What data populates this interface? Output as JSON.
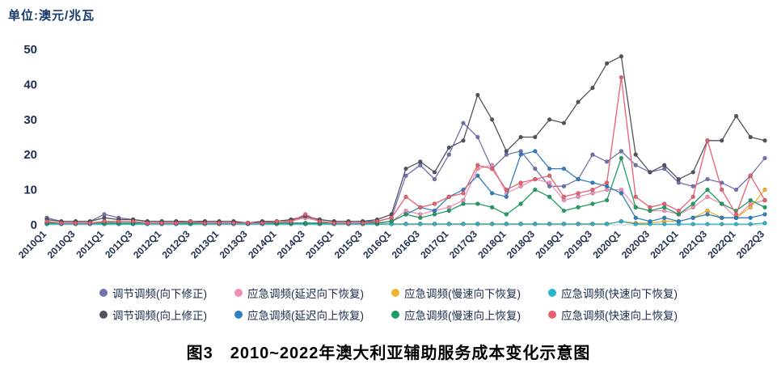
{
  "unit_label": "单位:澳元/兆瓦",
  "caption": "图3　2010~2022年澳大利亚辅助服务成本变化示意图",
  "chart_data": {
    "type": "line",
    "title": "2010~2022年澳大利亚辅助服务成本变化示意图",
    "ylabel": "澳元/兆瓦",
    "ylim": [
      0,
      50
    ],
    "yticks": [
      0,
      10,
      20,
      30,
      40,
      50
    ],
    "x_tick_step": 2,
    "grid": false,
    "legend_position": "bottom",
    "x": [
      "2010Q1",
      "2010Q2",
      "2010Q3",
      "2010Q4",
      "2011Q1",
      "2011Q2",
      "2011Q3",
      "2011Q4",
      "2012Q1",
      "2012Q2",
      "2012Q3",
      "2012Q4",
      "2013Q1",
      "2013Q2",
      "2013Q3",
      "2013Q4",
      "2014Q1",
      "2014Q2",
      "2014Q3",
      "2014Q4",
      "2015Q1",
      "2015Q2",
      "2015Q3",
      "2015Q4",
      "2016Q1",
      "2016Q2",
      "2016Q3",
      "2016Q4",
      "2017Q1",
      "2017Q2",
      "2017Q3",
      "2017Q4",
      "2018Q1",
      "2018Q2",
      "2018Q3",
      "2018Q4",
      "2019Q1",
      "2019Q2",
      "2019Q3",
      "2019Q4",
      "2020Q1",
      "2020Q2",
      "2020Q3",
      "2020Q4",
      "2021Q1",
      "2021Q2",
      "2021Q3",
      "2021Q4",
      "2022Q1",
      "2022Q2",
      "2022Q3"
    ],
    "series": [
      {
        "name": "调节调频(向下修正)",
        "color": "#6f72b0",
        "values": [
          2,
          1,
          1,
          1,
          3,
          2,
          1.5,
          1,
          1,
          1,
          1,
          1,
          1,
          1,
          0.5,
          1,
          1,
          1.5,
          2,
          1.5,
          1,
          1,
          1,
          1,
          2,
          14,
          17,
          13,
          20,
          29,
          25,
          16,
          20,
          21,
          16,
          11,
          11,
          13,
          20,
          18,
          21,
          17,
          15,
          16,
          12,
          11,
          13,
          12,
          10,
          14,
          19
        ]
      },
      {
        "name": "应急调频(延迟向下恢复)",
        "color": "#ef8fb5",
        "values": [
          0.5,
          0.5,
          0.5,
          0.5,
          1,
          0.5,
          0.5,
          0.5,
          0.5,
          0.5,
          0.5,
          0.5,
          0.5,
          0.5,
          0.5,
          0.5,
          0.5,
          1,
          2,
          1,
          0.5,
          0.5,
          0.5,
          0.5,
          1,
          4,
          3,
          4,
          5,
          7,
          16,
          17,
          9,
          11,
          13,
          12,
          7,
          8,
          9,
          10,
          10,
          5,
          4,
          4,
          3,
          5,
          8,
          6,
          2,
          6,
          7
        ]
      },
      {
        "name": "应急调频(慢速向下恢复)",
        "color": "#edb52e",
        "values": [
          0.3,
          0.3,
          0.3,
          0.3,
          0.3,
          0.3,
          0.3,
          0.3,
          0.3,
          0.3,
          0.3,
          0.3,
          0.3,
          0.3,
          0.3,
          0.3,
          0.3,
          0.3,
          0.3,
          0.3,
          0.3,
          0.3,
          0.3,
          0.3,
          0.3,
          0.3,
          0.3,
          0.3,
          0.3,
          0.3,
          0.3,
          0.3,
          0.3,
          0.3,
          0.3,
          0.3,
          0.3,
          0.3,
          0.3,
          0.3,
          1,
          0.5,
          0.5,
          1,
          1,
          2,
          4,
          2,
          2,
          5,
          10
        ]
      },
      {
        "name": "应急调频(快速向下恢复)",
        "color": "#2ab5cf",
        "values": [
          0.2,
          0.2,
          0.2,
          0.2,
          0.2,
          0.2,
          0.2,
          0.2,
          0.2,
          0.2,
          0.2,
          0.2,
          0.2,
          0.2,
          0.2,
          0.2,
          0.2,
          0.2,
          0.2,
          0.2,
          0.2,
          0.2,
          0.2,
          0.2,
          0.2,
          0.2,
          0.2,
          0.2,
          0.2,
          0.2,
          0.2,
          0.2,
          0.2,
          0.2,
          0.2,
          0.2,
          0.2,
          0.2,
          0.2,
          0.2,
          1,
          0.2,
          0.2,
          0.2,
          0.2,
          0.2,
          0.2,
          0.2,
          0.2,
          0.2,
          0.5
        ]
      },
      {
        "name": "调节调频(向上修正)",
        "color": "#52525e",
        "values": [
          1.5,
          1,
          1,
          1,
          2,
          1.5,
          1.5,
          1,
          1,
          1,
          1,
          1,
          1,
          1,
          0.5,
          1,
          1,
          1.5,
          2.5,
          1.5,
          1,
          1,
          1,
          1.5,
          3,
          16,
          18,
          15,
          22,
          24,
          37,
          30,
          21,
          25,
          25,
          30,
          29,
          35,
          39,
          46,
          48,
          20,
          15,
          17,
          13,
          15,
          24,
          24,
          31,
          25,
          24
        ]
      },
      {
        "name": "应急调频(延迟向上恢复)",
        "color": "#2d7fc1",
        "values": [
          0.5,
          0.5,
          0.5,
          0.5,
          0.5,
          0.5,
          0.5,
          0.5,
          0.5,
          0.5,
          0.5,
          0.5,
          0.5,
          0.5,
          0.5,
          0.5,
          0.5,
          0.5,
          0.5,
          0.5,
          0.5,
          0.5,
          0.5,
          0.5,
          1,
          3,
          5,
          4,
          8,
          10,
          14,
          9,
          8,
          20,
          21,
          16,
          16,
          13,
          12,
          11,
          9,
          2,
          1,
          2,
          1,
          2,
          3,
          2,
          2,
          2,
          3
        ]
      },
      {
        "name": "应急调频(慢速向上恢复)",
        "color": "#1f9e62",
        "values": [
          0.5,
          0.5,
          0.5,
          0.5,
          0.5,
          0.5,
          0.5,
          0.5,
          0.5,
          0.5,
          0.5,
          0.5,
          0.5,
          0.5,
          0.5,
          0.5,
          0.5,
          0.5,
          0.5,
          0.5,
          0.5,
          0.5,
          0.5,
          0.5,
          1,
          3,
          2,
          3,
          4,
          6,
          6,
          5,
          3,
          6,
          10,
          8,
          4,
          5,
          6,
          7,
          19,
          5,
          4,
          5,
          3,
          6,
          10,
          6,
          4,
          7,
          5
        ]
      },
      {
        "name": "应急调频(快速向上恢复)",
        "color": "#e9606e",
        "values": [
          1,
          0.5,
          0.5,
          0.5,
          1,
          1,
          1,
          0.5,
          0.5,
          0.5,
          1,
          0.5,
          0.5,
          0.5,
          0.5,
          0.5,
          1,
          1,
          3,
          1,
          0.5,
          0.5,
          0.5,
          1,
          2,
          8,
          5,
          6,
          8,
          9,
          17,
          16,
          10,
          12,
          13,
          14,
          8,
          9,
          10,
          12,
          42,
          8,
          5,
          6,
          4,
          8,
          24,
          10,
          3,
          14,
          7
        ]
      }
    ],
    "legend_rows": [
      [
        0,
        1,
        2,
        3
      ],
      [
        4,
        5,
        6,
        7
      ]
    ]
  }
}
